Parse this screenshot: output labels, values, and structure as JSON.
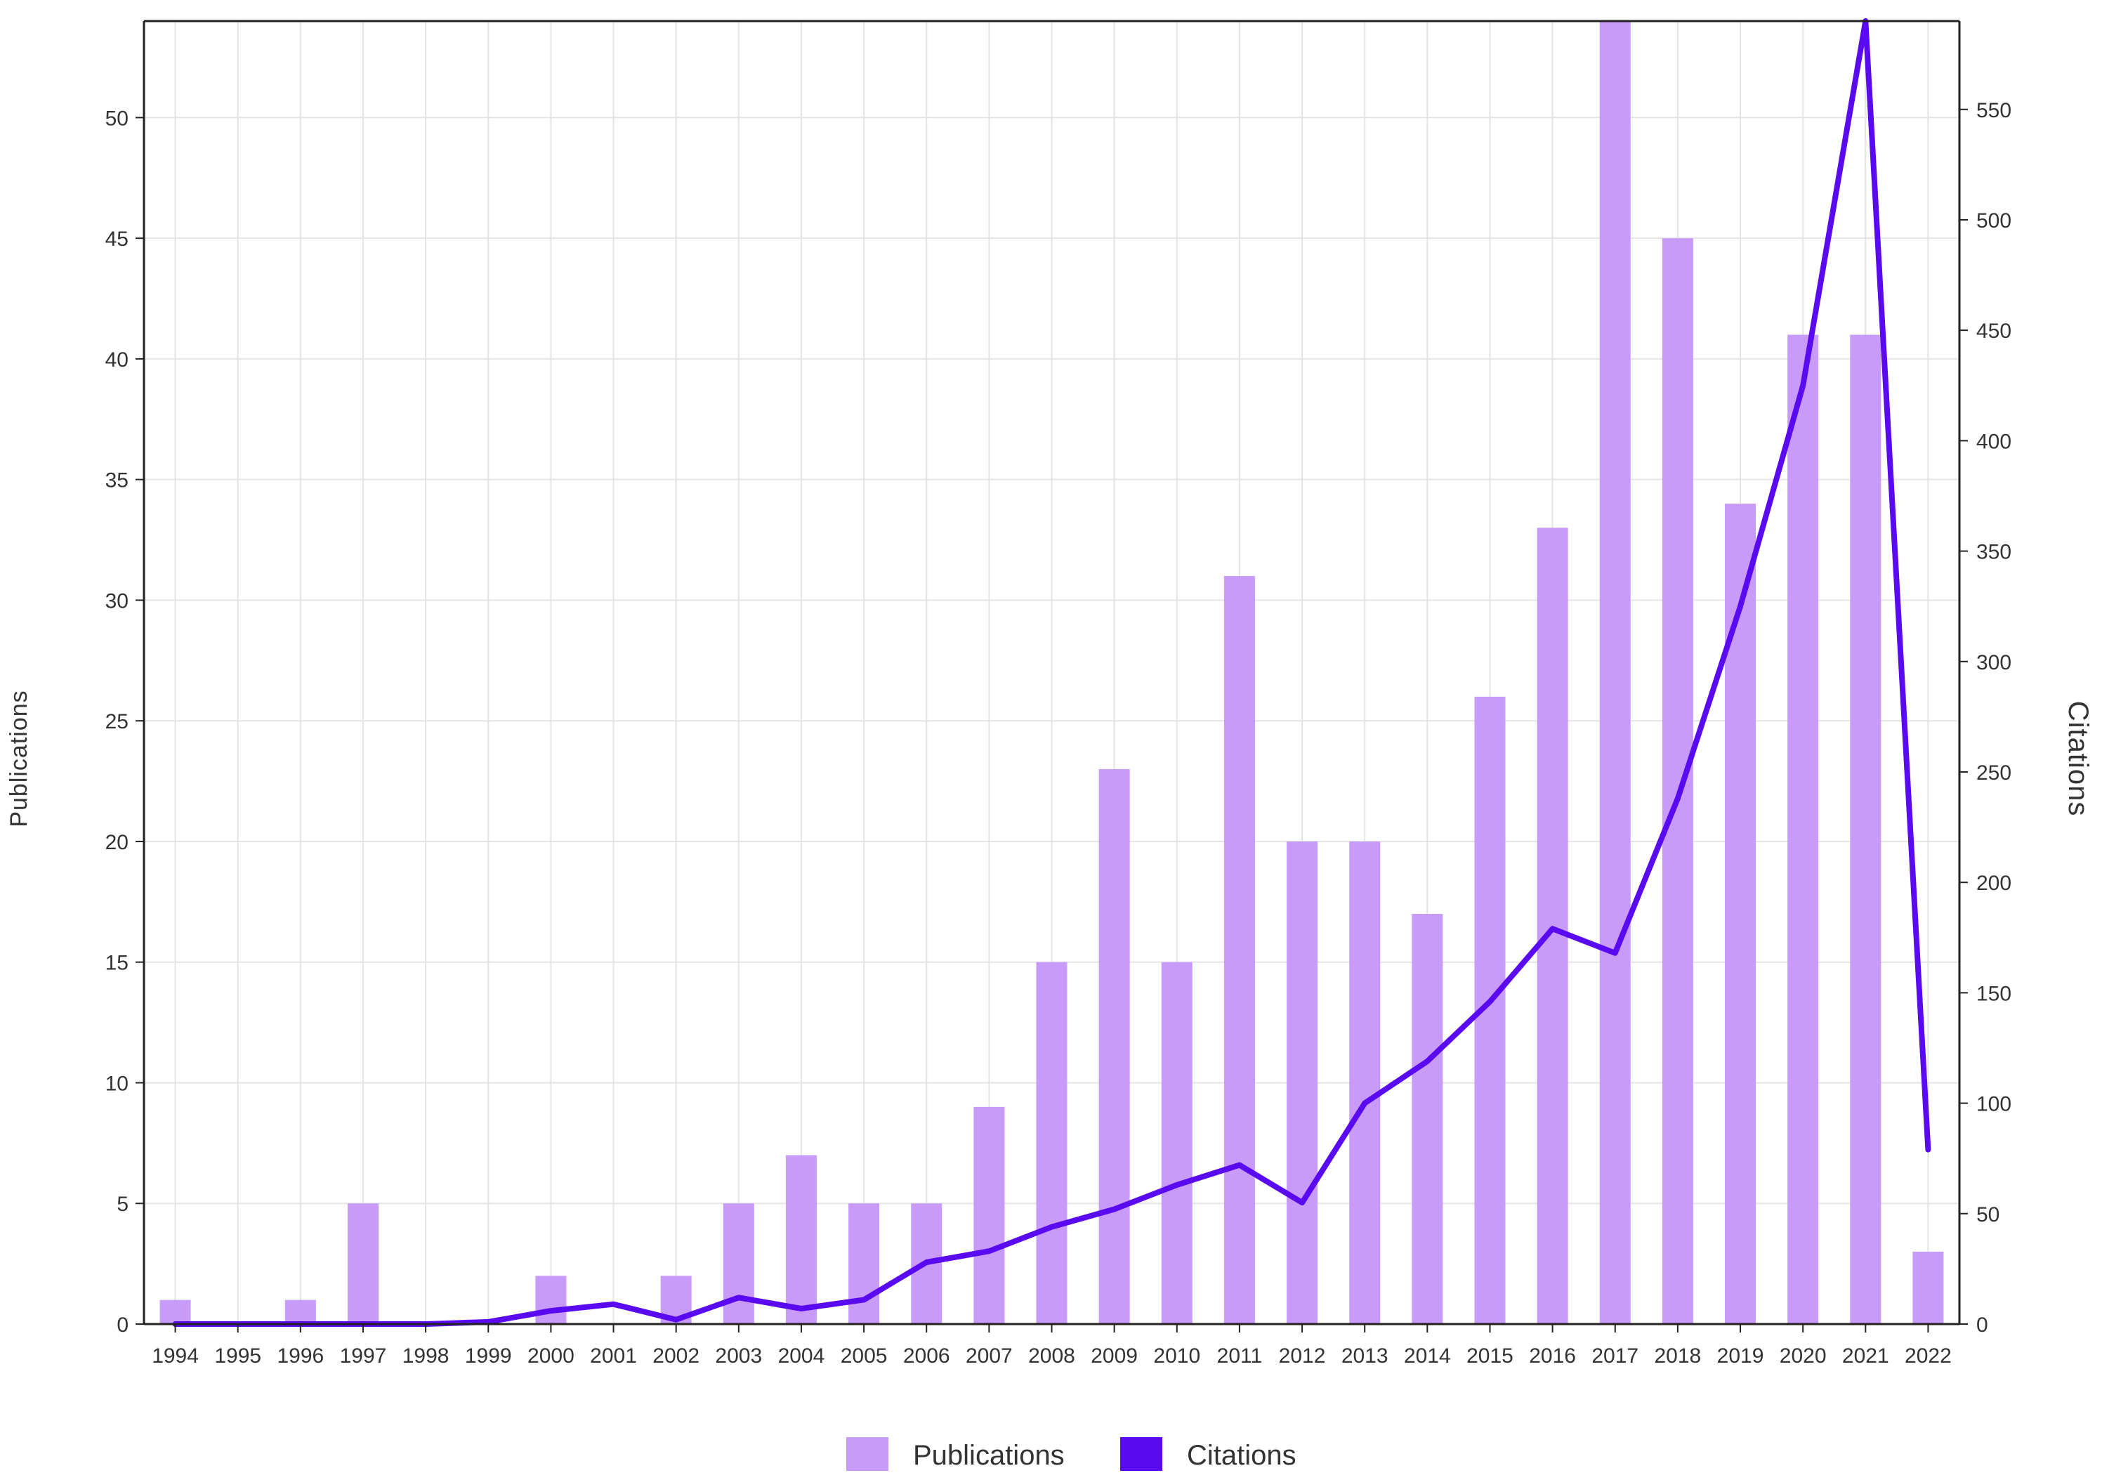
{
  "chart_data": {
    "type": "bar",
    "title": "",
    "xlabel": "",
    "ylabel": "Publications",
    "y2label": "Citations",
    "categories": [
      "1994",
      "1995",
      "1996",
      "1997",
      "1998",
      "1999",
      "2000",
      "2001",
      "2002",
      "2003",
      "2004",
      "2005",
      "2006",
      "2007",
      "2008",
      "2009",
      "2010",
      "2011",
      "2012",
      "2013",
      "2014",
      "2015",
      "2016",
      "2017",
      "2018",
      "2019",
      "2020",
      "2021",
      "2022"
    ],
    "series": [
      {
        "name": "Publications",
        "type": "bar",
        "axis": "left",
        "color": "#c89bfa",
        "values": [
          1,
          0,
          1,
          5,
          0,
          0,
          2,
          0,
          2,
          5,
          7,
          5,
          5,
          9,
          15,
          23,
          15,
          31,
          20,
          20,
          17,
          26,
          33,
          54,
          45,
          34,
          41,
          41,
          3
        ]
      },
      {
        "name": "Citations",
        "type": "line",
        "axis": "right",
        "color": "#5a0af0",
        "values": [
          0,
          0,
          0,
          0,
          0,
          1,
          6,
          9,
          2,
          12,
          7,
          11,
          28,
          33,
          44,
          52,
          63,
          72,
          55,
          100,
          119,
          146,
          179,
          168,
          238,
          325,
          425,
          590,
          79
        ]
      }
    ],
    "ylim": [
      0,
      54
    ],
    "y2lim": [
      0,
      590
    ],
    "yticks": [
      0,
      5,
      10,
      15,
      20,
      25,
      30,
      35,
      40,
      45,
      50
    ],
    "y2ticks": [
      0,
      50,
      100,
      150,
      200,
      250,
      300,
      350,
      400,
      450,
      500,
      550
    ],
    "grid": true,
    "legend": "bottom-center"
  }
}
